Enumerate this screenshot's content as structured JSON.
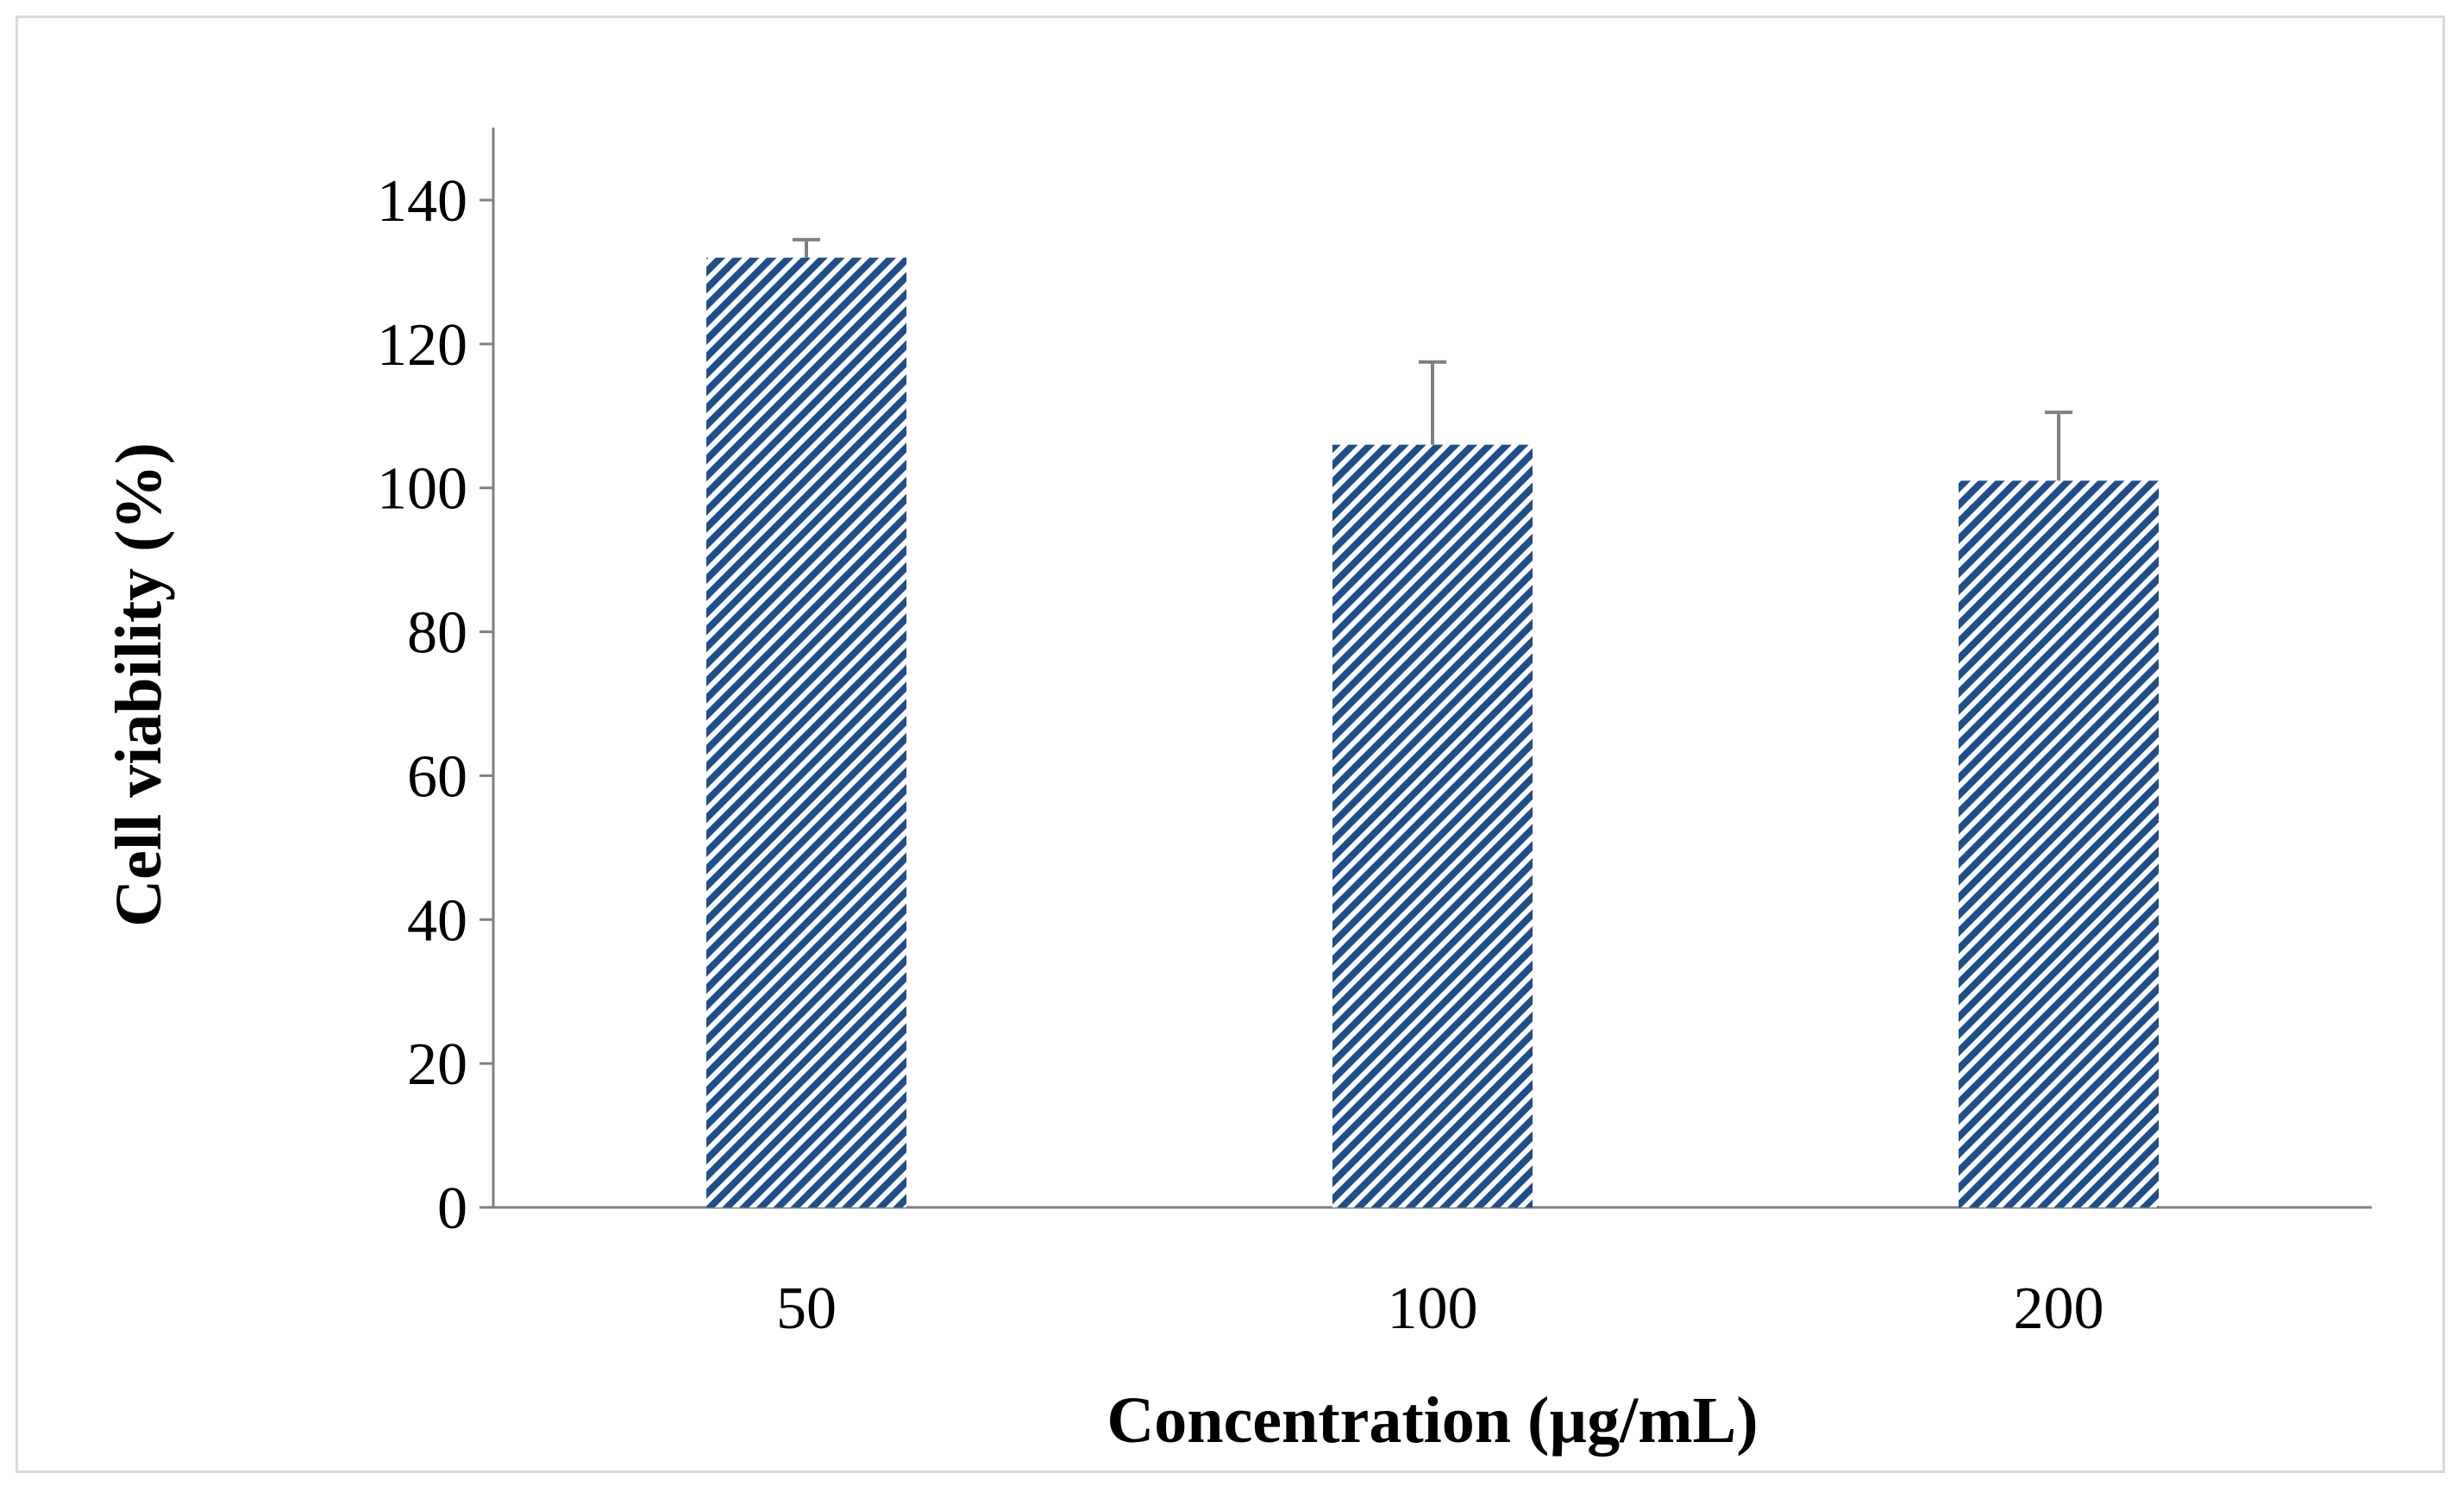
{
  "chart_data": {
    "type": "bar",
    "title": "",
    "xlabel": "Concentration (µg/mL)",
    "ylabel": "Cell viability (%)",
    "categories": [
      "50",
      "100",
      "200"
    ],
    "series": [
      {
        "name": "Cell viability",
        "values": [
          132,
          106,
          101
        ],
        "errors": [
          2.5,
          11.5,
          9.5
        ],
        "color": "#1f4e8c"
      }
    ],
    "ylim": [
      0,
      150
    ],
    "yticks": [
      0,
      20,
      40,
      60,
      80,
      100,
      120,
      140
    ],
    "grid": false,
    "legend": "none",
    "bar_pattern": "diagonal-hatch",
    "colors": {
      "bar": "#1f4e8c",
      "axis": "#808080",
      "error_bar": "#808080",
      "frame": "#d9d9d9"
    }
  }
}
